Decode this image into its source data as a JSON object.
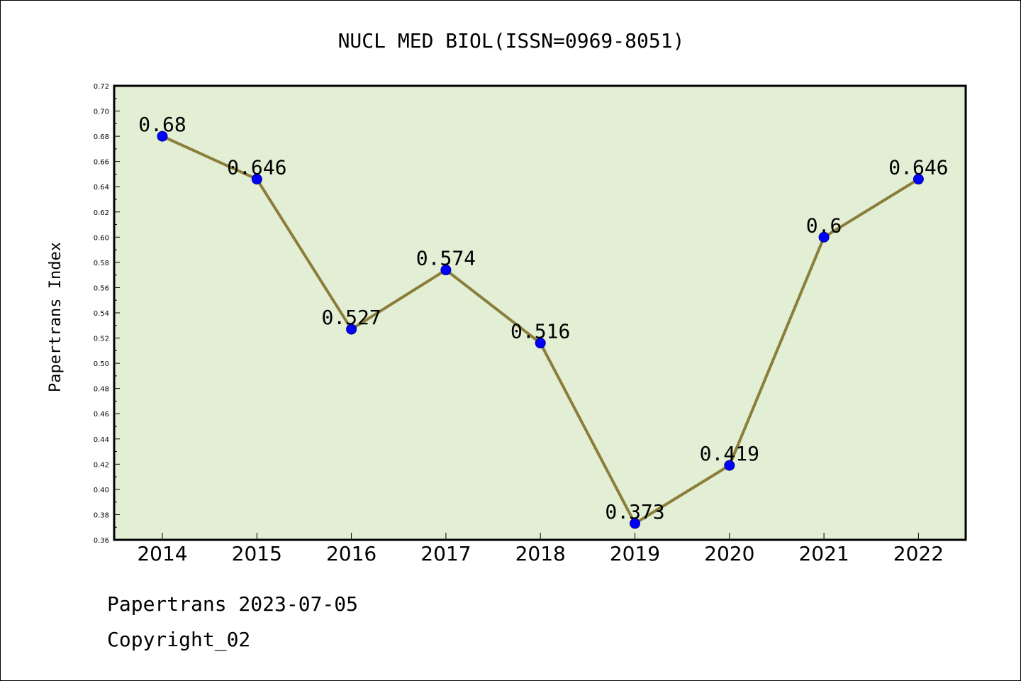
{
  "chart_data": {
    "type": "line",
    "title": "NUCL MED BIOL(ISSN=0969-8051)",
    "xlabel": "",
    "ylabel": "Papertrans Index",
    "categories": [
      "2014",
      "2015",
      "2016",
      "2017",
      "2018",
      "2019",
      "2020",
      "2021",
      "2022"
    ],
    "values": [
      0.68,
      0.646,
      0.527,
      0.574,
      0.516,
      0.373,
      0.419,
      0.6,
      0.646
    ],
    "data_labels": [
      "0.68",
      "0.646",
      "0.527",
      "0.574",
      "0.516",
      "0.373",
      "0.419",
      "0.6",
      "0.646"
    ],
    "ylim": [
      0.36,
      0.72
    ],
    "yticks": [
      "0.36",
      "0.38",
      "0.40",
      "0.42",
      "0.44",
      "0.46",
      "0.48",
      "0.50",
      "0.52",
      "0.54",
      "0.56",
      "0.58",
      "0.60",
      "0.62",
      "0.64",
      "0.66",
      "0.68",
      "0.70",
      "0.72"
    ],
    "grid": false,
    "legend": "none",
    "colors": {
      "plot_background": "#e2efd5",
      "line": "#8b7d3a",
      "marker": "#0000ff",
      "frame": "#000000"
    }
  },
  "footer": {
    "line1": "Papertrans 2023-07-05",
    "line2": "Copyright_02"
  }
}
